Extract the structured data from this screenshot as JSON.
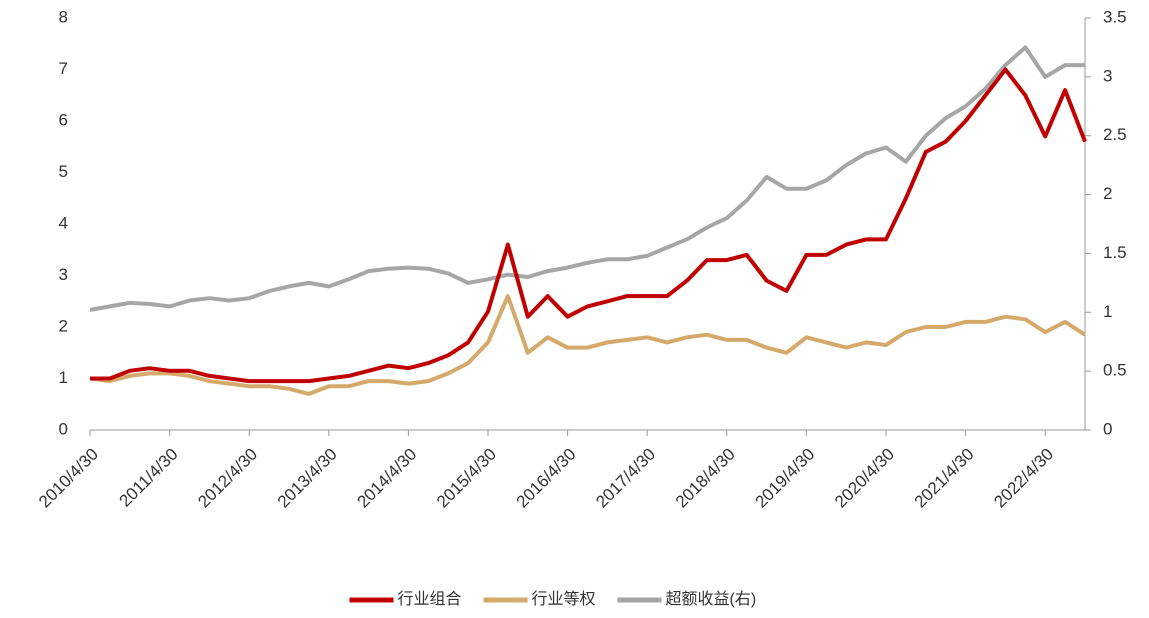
{
  "chart_data": {
    "type": "line",
    "categories": [
      "2010/4/30",
      null,
      null,
      null,
      "2011/4/30",
      null,
      null,
      null,
      "2012/4/30",
      null,
      null,
      null,
      "2013/4/30",
      null,
      null,
      null,
      "2014/4/30",
      null,
      null,
      null,
      "2015/4/30",
      null,
      null,
      null,
      "2016/4/30",
      null,
      null,
      null,
      "2017/4/30",
      null,
      null,
      null,
      "2018/4/30",
      null,
      null,
      null,
      "2019/4/30",
      null,
      null,
      null,
      "2020/4/30",
      null,
      null,
      null,
      "2021/4/30",
      null,
      null,
      null,
      "2022/4/30",
      null,
      null
    ],
    "series": [
      {
        "name": "行业组合",
        "color": "#c00000",
        "values": [
          1.0,
          1.0,
          1.15,
          1.2,
          1.15,
          1.15,
          1.05,
          1.0,
          0.95,
          0.95,
          0.95,
          0.95,
          1.0,
          1.05,
          1.15,
          1.25,
          1.2,
          1.3,
          1.45,
          1.7,
          2.3,
          3.6,
          2.2,
          2.6,
          2.2,
          2.4,
          2.5,
          2.6,
          2.6,
          2.6,
          2.9,
          3.3,
          3.3,
          3.4,
          2.9,
          2.7,
          3.4,
          3.4,
          3.6,
          3.7,
          3.7,
          4.5,
          5.4,
          5.6,
          6.0,
          6.5,
          7.0,
          6.5,
          5.7,
          6.6,
          5.6
        ]
      },
      {
        "name": "行业等权",
        "color": "#d4a96a",
        "values": [
          1.0,
          0.95,
          1.05,
          1.1,
          1.1,
          1.05,
          0.95,
          0.9,
          0.85,
          0.85,
          0.8,
          0.7,
          0.85,
          0.85,
          0.95,
          0.95,
          0.9,
          0.95,
          1.1,
          1.3,
          1.7,
          2.6,
          1.5,
          1.8,
          1.6,
          1.6,
          1.7,
          1.75,
          1.8,
          1.7,
          1.8,
          1.85,
          1.75,
          1.75,
          1.6,
          1.5,
          1.8,
          1.7,
          1.6,
          1.7,
          1.65,
          1.9,
          2.0,
          2.0,
          2.1,
          2.1,
          2.2,
          2.15,
          1.9,
          2.1,
          1.85
        ]
      },
      {
        "name": "超额收益(右)",
        "color": "#a6a6a6",
        "axis": "y2",
        "values": [
          1.02,
          1.05,
          1.08,
          1.07,
          1.05,
          1.1,
          1.12,
          1.1,
          1.12,
          1.18,
          1.22,
          1.25,
          1.22,
          1.28,
          1.35,
          1.37,
          1.38,
          1.37,
          1.33,
          1.25,
          1.28,
          1.32,
          1.3,
          1.35,
          1.38,
          1.42,
          1.45,
          1.45,
          1.48,
          1.55,
          1.62,
          1.72,
          1.8,
          1.95,
          2.15,
          2.05,
          2.05,
          2.12,
          2.25,
          2.35,
          2.4,
          2.28,
          2.5,
          2.65,
          2.75,
          2.9,
          3.1,
          3.25,
          3.0,
          3.1,
          3.1
        ]
      }
    ],
    "ylim": [
      0,
      8
    ],
    "yticks": [
      0,
      1,
      2,
      3,
      4,
      5,
      6,
      7,
      8
    ],
    "y2lim": [
      0,
      3.5
    ],
    "y2ticks": [
      0,
      0.5,
      1,
      1.5,
      2,
      2.5,
      3,
      3.5
    ],
    "legend": "bottom"
  }
}
